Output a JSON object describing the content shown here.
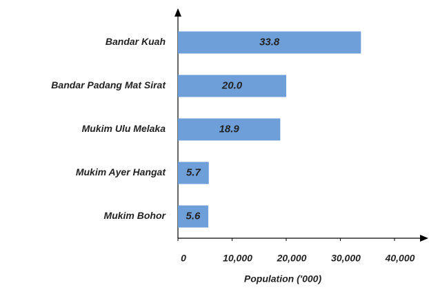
{
  "chart_data": {
    "type": "bar",
    "orientation": "horizontal",
    "x_label": "Population ('000)",
    "categories": [
      "Bandar Kuah",
      "Bandar Padang Mat Sirat",
      "Mukim Ulu Melaka",
      "Mukim Ayer Hangat",
      "Mukim Bohor"
    ],
    "values": [
      33800,
      20000,
      18900,
      5700,
      5600
    ],
    "value_labels": [
      "33.8",
      "20.0",
      "18.9",
      "5.7",
      "5.6"
    ],
    "color": "#6f9fd8",
    "xlim": [
      0,
      46000
    ],
    "xticks": [
      0,
      {
        "value": 10000,
        "label": "10,000"
      },
      {
        "value": 20000,
        "label": "20,000"
      },
      {
        "value": 30000,
        "label": "30,000"
      },
      {
        "value": 40000,
        "label": "40,000"
      }
    ]
  }
}
